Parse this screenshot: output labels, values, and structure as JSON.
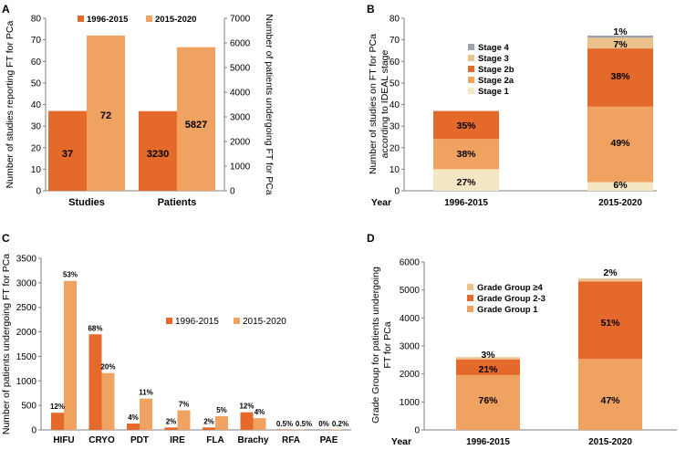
{
  "colors": {
    "dark": "#E4692B",
    "light": "#F0A261",
    "pale": "#F6E7C4",
    "tan": "#EBC28B",
    "grey": "#9DA3AB",
    "axis": "#7f7f7f"
  },
  "chart_data": [
    {
      "panel": "A",
      "type": "bar",
      "categories": [
        "Studies",
        "Patients"
      ],
      "series": [
        {
          "name": "1996-2015",
          "values": [
            37,
            3230
          ],
          "labels": [
            "37",
            "3230"
          ]
        },
        {
          "name": "2015-2020",
          "values": [
            72,
            5827
          ],
          "labels": [
            "72",
            "5827"
          ]
        }
      ],
      "ylabel_left": "Number of studies reporting FT for PCa",
      "ylim_left": [
        0,
        80
      ],
      "yticks_left": [
        "0",
        "10",
        "20",
        "30",
        "40",
        "50",
        "60",
        "70",
        "80"
      ],
      "ylabel_right": "Number of patients undergoing FT for PCa",
      "ylim_right": [
        0,
        7000
      ],
      "yticks_right": [
        "0",
        "1000",
        "2000",
        "3000",
        "4000",
        "5000",
        "6000",
        "7000"
      ],
      "legend": [
        "1996-2015",
        "2015-2020"
      ]
    },
    {
      "panel": "B",
      "type": "bar",
      "stacked": true,
      "categories": [
        "1996-2015",
        "2015-2020"
      ],
      "xlabel": "Year",
      "ylabel": "Number of studies on FT for PCa according to IDEAL stage",
      "ylim": [
        0,
        80
      ],
      "yticks": [
        "0",
        "10",
        "20",
        "30",
        "40",
        "50",
        "60",
        "70",
        "80"
      ],
      "series": [
        {
          "name": "Stage 1",
          "values": [
            10,
            4
          ],
          "labels": [
            "27%",
            "6%"
          ]
        },
        {
          "name": "Stage 2a",
          "values": [
            14,
            35
          ],
          "labels": [
            "38%",
            "49%"
          ]
        },
        {
          "name": "Stage 2b",
          "values": [
            13,
            27
          ],
          "labels": [
            "35%",
            "38%"
          ]
        },
        {
          "name": "Stage 3",
          "values": [
            0,
            5
          ],
          "labels": [
            "",
            "7%"
          ]
        },
        {
          "name": "Stage 4",
          "values": [
            0,
            1
          ],
          "labels": [
            "",
            "1%"
          ]
        }
      ],
      "legend": [
        "Stage 4",
        "Stage 3",
        "Stage 2b",
        "Stage 2a",
        "Stage 1"
      ]
    },
    {
      "panel": "C",
      "type": "bar",
      "categories": [
        "HIFU",
        "CRYO",
        "PDT",
        "IRE",
        "FLA",
        "Brachy",
        "RFA",
        "PAE"
      ],
      "ylabel": "Number of patients undergoing FT for PCa",
      "ylim": [
        0,
        3500
      ],
      "yticks": [
        "0",
        "500",
        "1000",
        "1500",
        "2000",
        "2500",
        "3000",
        "3500"
      ],
      "series": [
        {
          "name": "1996-2015",
          "values": [
            350,
            1950,
            130,
            50,
            50,
            360,
            10,
            0
          ],
          "labels": [
            "12%",
            "68%",
            "4%",
            "2%",
            "2%",
            "12%",
            "0.5%",
            "0%"
          ]
        },
        {
          "name": "2015-2020",
          "values": [
            3040,
            1160,
            640,
            400,
            280,
            240,
            10,
            10
          ],
          "labels": [
            "53%",
            "20%",
            "11%",
            "7%",
            "5%",
            "4%",
            "0.5%",
            "0.2%"
          ]
        }
      ],
      "legend": [
        "1996-2015",
        "2015-2020"
      ]
    },
    {
      "panel": "D",
      "type": "bar",
      "stacked": true,
      "categories": [
        "1996-2015",
        "2015-2020"
      ],
      "xlabel": "Year",
      "ylabel": "Grade Group for patients undergoing FT for PCa",
      "ylim": [
        0,
        6000
      ],
      "yticks": [
        "0",
        "1000",
        "2000",
        "3000",
        "4000",
        "5000",
        "6000"
      ],
      "series": [
        {
          "name": "Grade Group 1",
          "values": [
            1960,
            2540
          ],
          "labels": [
            "76%",
            "47%"
          ]
        },
        {
          "name": "Grade Group 2-3",
          "values": [
            560,
            2760
          ],
          "labels": [
            "21%",
            "51%"
          ]
        },
        {
          "name": "Grade Group ≥4",
          "values": [
            80,
            110
          ],
          "labels": [
            "3%",
            "2%"
          ]
        }
      ],
      "legend": [
        "Grade Group ≥4",
        "Grade Group 2-3",
        "Grade Group 1"
      ]
    }
  ]
}
